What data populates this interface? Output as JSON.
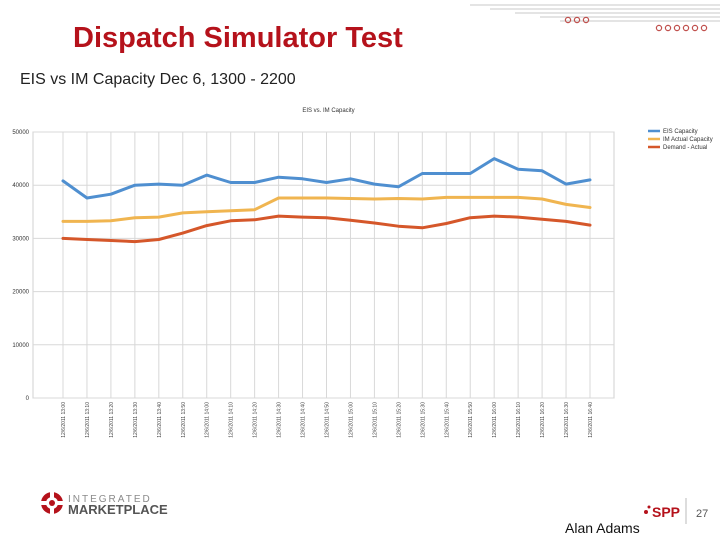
{
  "slide": {
    "title": "Dispatch Simulator Test",
    "subtitle": "EIS vs IM Capacity Dec 6, 1300 - 2200",
    "author": "Alan Adams",
    "page_number": "27",
    "logo_line1": "INTEGRATED",
    "logo_line2": "MARKETPLACE",
    "spp_logo": "SPP"
  },
  "colors": {
    "title": "#b5121b",
    "eis": "#4f8fd0",
    "im": "#f0b550",
    "demand": "#d5572a",
    "decor": "#c0504d"
  },
  "chart_data": {
    "type": "line",
    "title": "EIS vs. IM Capacity",
    "ylim": [
      0,
      50000
    ],
    "y_ticks": [
      0,
      10000,
      20000,
      30000,
      40000,
      50000
    ],
    "grid": true,
    "legend_position": "top-right",
    "x": [
      "12/6/2011 13:00",
      "12/6/2011 13:10",
      "12/6/2011 13:20",
      "12/6/2011 13:30",
      "12/6/2011 13:40",
      "12/6/2011 13:50",
      "12/6/2011 14:00",
      "12/6/2011 14:10",
      "12/6/2011 14:20",
      "12/6/2011 14:30",
      "12/6/2011 14:40",
      "12/6/2011 14:50",
      "12/6/2011 15:00",
      "12/6/2011 15:10",
      "12/6/2011 15:20",
      "12/6/2011 15:30",
      "12/6/2011 15:40",
      "12/6/2011 15:50",
      "12/6/2011 16:00",
      "12/6/2011 16:10",
      "12/6/2011 16:20",
      "12/6/2011 16:30",
      "12/6/2011 16:40"
    ],
    "series": [
      {
        "name": "EIS Capacity",
        "color": "#4f8fd0",
        "values": [
          40800,
          37600,
          38300,
          40000,
          40200,
          40000,
          41900,
          40500,
          40500,
          41500,
          41200,
          40500,
          41200,
          40200,
          39700,
          42200,
          42200,
          42200,
          45000,
          43000,
          42700,
          40200,
          41000
        ]
      },
      {
        "name": "IM Actual Capacity",
        "color": "#f0b550",
        "values": [
          33200,
          33200,
          33300,
          33900,
          34000,
          34800,
          35000,
          35200,
          35400,
          37600,
          37600,
          37600,
          37500,
          37400,
          37500,
          37400,
          37700,
          37700,
          37700,
          37700,
          37400,
          36400,
          35800
        ]
      },
      {
        "name": "Demand - Actual",
        "color": "#d5572a",
        "values": [
          30000,
          29800,
          29600,
          29400,
          29800,
          31000,
          32400,
          33300,
          33500,
          34200,
          34000,
          33900,
          33400,
          32900,
          32300,
          32000,
          32800,
          33900,
          34200,
          34000,
          33600,
          33200,
          32500
        ]
      }
    ]
  }
}
